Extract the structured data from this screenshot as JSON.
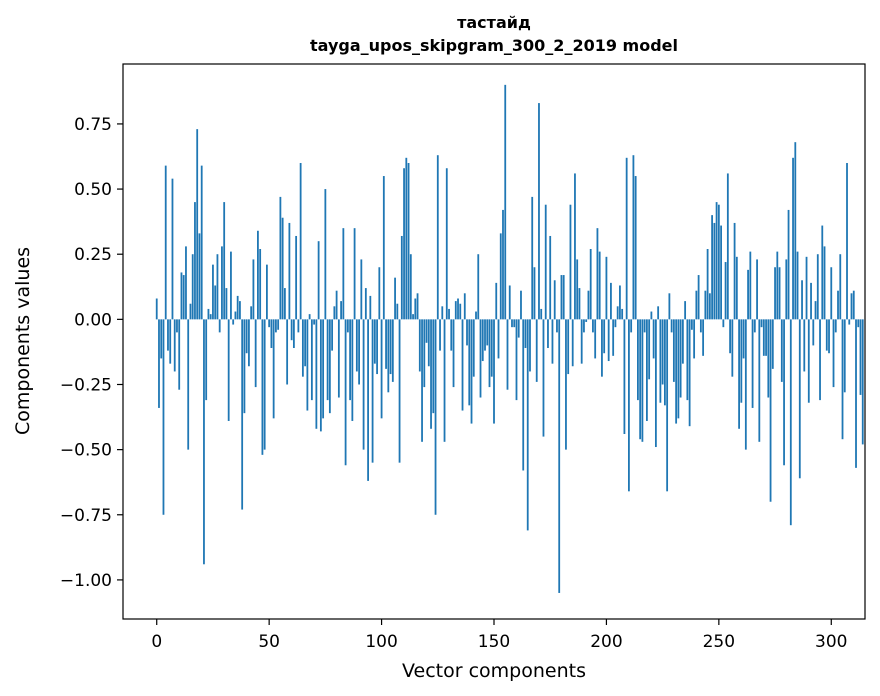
{
  "chart_data": {
    "type": "bar",
    "title": "тастайд",
    "subtitle": "tayga_upos_skipgram_300_2_2019 model",
    "xlabel": "Vector components",
    "ylabel": "Components values",
    "xlim": [
      -15,
      315
    ],
    "ylim": [
      -1.15,
      0.98
    ],
    "xticks": [
      0,
      50,
      100,
      150,
      200,
      250,
      300
    ],
    "xtick_labels": [
      "0",
      "50",
      "100",
      "150",
      "200",
      "250",
      "300"
    ],
    "yticks": [
      -1.0,
      -0.75,
      -0.5,
      -0.25,
      0.0,
      0.25,
      0.5,
      0.75
    ],
    "ytick_labels": [
      "−1.00",
      "−0.75",
      "−0.50",
      "−0.25",
      "0.00",
      "0.25",
      "0.50",
      "0.75"
    ],
    "grid": false,
    "bar_color": "#1f77b4",
    "values": [
      0.08,
      -0.34,
      -0.15,
      -0.75,
      0.59,
      -0.12,
      -0.17,
      0.54,
      -0.2,
      -0.05,
      -0.27,
      0.18,
      0.17,
      0.28,
      -0.5,
      0.06,
      0.25,
      0.45,
      0.73,
      0.33,
      0.59,
      -0.94,
      -0.31,
      0.04,
      0.02,
      0.21,
      0.13,
      0.25,
      -0.05,
      0.28,
      0.45,
      0.12,
      -0.39,
      0.26,
      -0.02,
      0.03,
      0.09,
      0.07,
      -0.73,
      -0.36,
      -0.13,
      -0.18,
      0.05,
      0.23,
      -0.26,
      0.34,
      0.27,
      -0.52,
      -0.5,
      0.21,
      -0.03,
      -0.11,
      -0.38,
      -0.05,
      -0.04,
      0.47,
      0.39,
      0.12,
      -0.25,
      0.37,
      -0.08,
      -0.11,
      0.32,
      -0.05,
      0.6,
      -0.22,
      -0.18,
      -0.35,
      0.02,
      -0.31,
      -0.02,
      -0.42,
      0.3,
      -0.43,
      -0.38,
      0.5,
      -0.31,
      -0.36,
      -0.12,
      0.05,
      0.11,
      -0.3,
      0.07,
      0.35,
      -0.56,
      -0.05,
      -0.31,
      -0.39,
      0.35,
      -0.2,
      -0.25,
      0.23,
      -0.5,
      0.12,
      -0.62,
      0.09,
      -0.55,
      -0.17,
      -0.21,
      0.2,
      -0.38,
      0.55,
      -0.19,
      -0.28,
      -0.21,
      -0.24,
      0.16,
      0.06,
      -0.55,
      0.32,
      0.58,
      0.62,
      0.6,
      0.25,
      0.02,
      0.08,
      0.1,
      -0.2,
      -0.47,
      -0.26,
      -0.09,
      -0.18,
      -0.42,
      -0.36,
      -0.75,
      0.63,
      -0.12,
      0.05,
      -0.47,
      0.58,
      0.04,
      -0.12,
      -0.26,
      0.07,
      0.08,
      0.06,
      -0.35,
      0.1,
      -0.1,
      -0.33,
      -0.4,
      -0.22,
      0.03,
      0.25,
      -0.3,
      -0.16,
      -0.12,
      -0.1,
      -0.26,
      -0.22,
      -0.4,
      0.14,
      -0.15,
      0.33,
      0.42,
      0.9,
      -0.27,
      0.13,
      -0.03,
      -0.03,
      -0.31,
      -0.07,
      0.11,
      -0.58,
      -0.11,
      -0.81,
      -0.2,
      0.47,
      0.2,
      -0.24,
      0.83,
      0.04,
      -0.45,
      0.44,
      -0.11,
      0.32,
      -0.17,
      0.15,
      -0.05,
      -1.05,
      0.17,
      0.17,
      -0.5,
      -0.21,
      0.44,
      -0.18,
      0.56,
      0.23,
      0.12,
      -0.17,
      -0.05,
      -0.01,
      0.11,
      0.27,
      -0.05,
      -0.15,
      0.35,
      0.26,
      -0.22,
      -0.13,
      0.24,
      -0.16,
      0.14,
      -0.14,
      -0.03,
      0.05,
      0.13,
      0.04,
      -0.44,
      0.62,
      -0.66,
      -0.05,
      0.63,
      0.55,
      -0.31,
      -0.46,
      -0.47,
      -0.05,
      -0.39,
      -0.23,
      0.03,
      -0.15,
      -0.49,
      0.05,
      -0.32,
      -0.25,
      -0.33,
      -0.66,
      0.1,
      -0.05,
      -0.24,
      -0.4,
      -0.38,
      -0.3,
      -0.17,
      0.07,
      -0.31,
      -0.41,
      -0.04,
      -0.15,
      0.11,
      0.17,
      -0.05,
      -0.14,
      0.11,
      0.27,
      0.1,
      0.4,
      0.37,
      0.45,
      0.44,
      0.36,
      -0.03,
      0.22,
      0.56,
      -0.13,
      -0.22,
      0.37,
      0.24,
      -0.42,
      -0.32,
      -0.15,
      -0.5,
      0.19,
      0.26,
      -0.34,
      -0.05,
      0.23,
      -0.47,
      -0.03,
      -0.14,
      -0.14,
      -0.3,
      -0.7,
      -0.19,
      0.2,
      0.26,
      0.2,
      -0.24,
      -0.56,
      0.23,
      0.42,
      -0.79,
      0.62,
      0.68,
      0.26,
      -0.61,
      0.15,
      -0.2,
      0.24,
      -0.32,
      0.14,
      -0.1,
      0.07,
      0.25,
      -0.31,
      0.36,
      0.28,
      -0.12,
      -0.13,
      0.2,
      -0.26,
      -0.05,
      0.11,
      0.25,
      -0.46,
      -0.28,
      0.6,
      -0.02,
      0.1,
      0.11,
      -0.57,
      -0.03,
      -0.29,
      -0.48
    ]
  }
}
